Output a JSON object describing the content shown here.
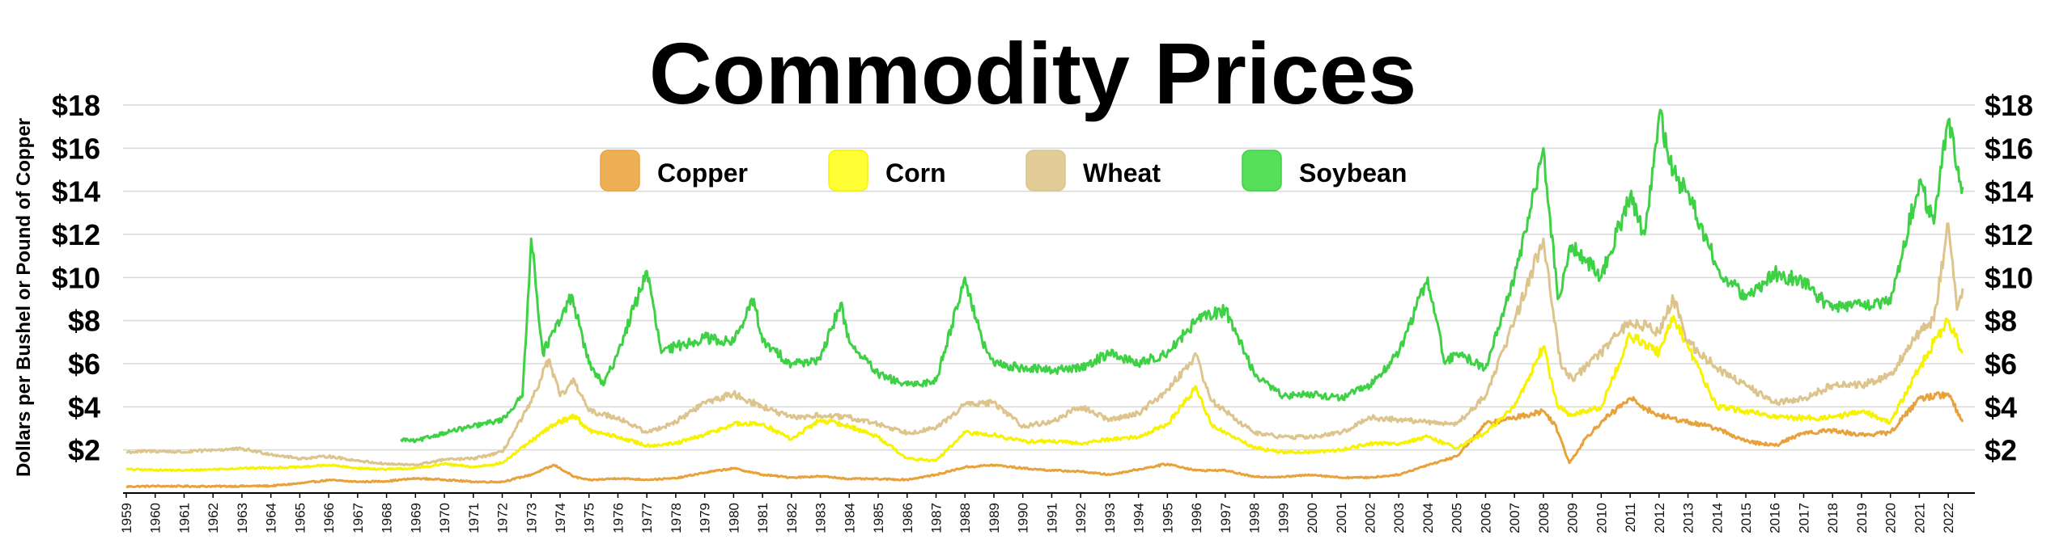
{
  "chart_data": {
    "type": "line",
    "title": "Commodity Prices",
    "ylabel": "Dollars per Bushel or Pound of Copper",
    "xlabel": "",
    "ylim": [
      0,
      18
    ],
    "xlim": [
      1959,
      2022.5
    ],
    "grid": true,
    "legend_position": "top-center",
    "y_ticks": [
      2,
      4,
      6,
      8,
      10,
      12,
      14,
      16,
      18
    ],
    "y_tick_labels": [
      "$2",
      "$4",
      "$6",
      "$8",
      "$10",
      "$12",
      "$14",
      "$16",
      "$18"
    ],
    "x_tick_labels": [
      "1959",
      "1960",
      "1961",
      "1962",
      "1963",
      "1964",
      "1965",
      "1966",
      "1967",
      "1968",
      "1969",
      "1970",
      "1971",
      "1972",
      "1973",
      "1974",
      "1975",
      "1976",
      "1977",
      "1978",
      "1979",
      "1980",
      "1981",
      "1982",
      "1983",
      "1984",
      "1985",
      "1986",
      "1987",
      "1988",
      "1989",
      "1990",
      "1991",
      "1992",
      "1993",
      "1994",
      "1995",
      "1996",
      "1997",
      "1998",
      "1999",
      "2000",
      "2001",
      "2002",
      "2003",
      "2004",
      "2005",
      "2006",
      "2007",
      "2008",
      "2009",
      "2010",
      "2011",
      "2012",
      "2013",
      "2014",
      "2015",
      "2016",
      "2017",
      "2018",
      "2019",
      "2020",
      "2021",
      "2022"
    ],
    "series": [
      {
        "name": "Copper",
        "color": "#e8a23c",
        "legend_color": "#eeb055",
        "points": [
          [
            1959,
            0.3
          ],
          [
            1960,
            0.32
          ],
          [
            1962,
            0.31
          ],
          [
            1964,
            0.33
          ],
          [
            1965,
            0.45
          ],
          [
            1966,
            0.6
          ],
          [
            1967,
            0.52
          ],
          [
            1968,
            0.55
          ],
          [
            1969,
            0.68
          ],
          [
            1970,
            0.62
          ],
          [
            1971,
            0.52
          ],
          [
            1972,
            0.52
          ],
          [
            1973,
            0.85
          ],
          [
            1973.8,
            1.3
          ],
          [
            1974.5,
            0.75
          ],
          [
            1975,
            0.6
          ],
          [
            1976,
            0.68
          ],
          [
            1977,
            0.62
          ],
          [
            1978,
            0.68
          ],
          [
            1979,
            0.95
          ],
          [
            1980,
            1.15
          ],
          [
            1981,
            0.85
          ],
          [
            1982,
            0.72
          ],
          [
            1983,
            0.78
          ],
          [
            1984,
            0.66
          ],
          [
            1985,
            0.65
          ],
          [
            1986,
            0.62
          ],
          [
            1987,
            0.85
          ],
          [
            1988,
            1.2
          ],
          [
            1989,
            1.3
          ],
          [
            1990,
            1.15
          ],
          [
            1991,
            1.05
          ],
          [
            1992,
            1.0
          ],
          [
            1993,
            0.85
          ],
          [
            1994,
            1.1
          ],
          [
            1995,
            1.35
          ],
          [
            1996,
            1.05
          ],
          [
            1997,
            1.05
          ],
          [
            1998,
            0.75
          ],
          [
            1999,
            0.75
          ],
          [
            2000,
            0.85
          ],
          [
            2001,
            0.72
          ],
          [
            2002,
            0.72
          ],
          [
            2003,
            0.85
          ],
          [
            2004,
            1.3
          ],
          [
            2005,
            1.7
          ],
          [
            2006,
            3.2
          ],
          [
            2007,
            3.5
          ],
          [
            2008,
            3.8
          ],
          [
            2008.4,
            3.2
          ],
          [
            2008.9,
            1.4
          ],
          [
            2009.5,
            2.6
          ],
          [
            2010,
            3.3
          ],
          [
            2011,
            4.4
          ],
          [
            2011.7,
            3.8
          ],
          [
            2012,
            3.6
          ],
          [
            2013,
            3.3
          ],
          [
            2014,
            3.0
          ],
          [
            2015,
            2.4
          ],
          [
            2016,
            2.2
          ],
          [
            2017,
            2.8
          ],
          [
            2018,
            2.9
          ],
          [
            2019,
            2.7
          ],
          [
            2020,
            2.8
          ],
          [
            2021,
            4.4
          ],
          [
            2022,
            4.6
          ],
          [
            2022.5,
            3.3
          ]
        ]
      },
      {
        "name": "Corn",
        "color": "#f6f200",
        "legend_color": "#ffff33",
        "points": [
          [
            1959,
            1.1
          ],
          [
            1961,
            1.05
          ],
          [
            1963,
            1.15
          ],
          [
            1965,
            1.2
          ],
          [
            1966,
            1.3
          ],
          [
            1967,
            1.15
          ],
          [
            1968,
            1.1
          ],
          [
            1969,
            1.15
          ],
          [
            1970,
            1.35
          ],
          [
            1971,
            1.2
          ],
          [
            1972,
            1.4
          ],
          [
            1973,
            2.4
          ],
          [
            1973.8,
            3.2
          ],
          [
            1974.5,
            3.6
          ],
          [
            1975,
            2.9
          ],
          [
            1976,
            2.6
          ],
          [
            1977,
            2.2
          ],
          [
            1978,
            2.3
          ],
          [
            1979,
            2.7
          ],
          [
            1980,
            3.2
          ],
          [
            1981,
            3.2
          ],
          [
            1982,
            2.5
          ],
          [
            1983,
            3.4
          ],
          [
            1984,
            3.1
          ],
          [
            1985,
            2.6
          ],
          [
            1986,
            1.6
          ],
          [
            1987,
            1.5
          ],
          [
            1988,
            2.8
          ],
          [
            1989,
            2.7
          ],
          [
            1990,
            2.4
          ],
          [
            1991,
            2.4
          ],
          [
            1992,
            2.3
          ],
          [
            1993,
            2.5
          ],
          [
            1994,
            2.6
          ],
          [
            1995,
            3.2
          ],
          [
            1996,
            4.9
          ],
          [
            1996.5,
            3.2
          ],
          [
            1997,
            2.8
          ],
          [
            1998,
            2.1
          ],
          [
            1999,
            1.9
          ],
          [
            2000,
            1.9
          ],
          [
            2001,
            2.0
          ],
          [
            2002,
            2.3
          ],
          [
            2003,
            2.3
          ],
          [
            2004,
            2.6
          ],
          [
            2005,
            2.1
          ],
          [
            2006,
            2.8
          ],
          [
            2007,
            4.0
          ],
          [
            2008,
            6.8
          ],
          [
            2008.5,
            4.0
          ],
          [
            2009,
            3.6
          ],
          [
            2010,
            4.0
          ],
          [
            2011,
            7.3
          ],
          [
            2012,
            6.5
          ],
          [
            2012.5,
            8.2
          ],
          [
            2013,
            6.8
          ],
          [
            2014,
            4.0
          ],
          [
            2015,
            3.8
          ],
          [
            2016,
            3.5
          ],
          [
            2017,
            3.5
          ],
          [
            2018,
            3.5
          ],
          [
            2019,
            3.8
          ],
          [
            2020,
            3.3
          ],
          [
            2021,
            5.8
          ],
          [
            2021.5,
            7.0
          ],
          [
            2022,
            8.0
          ],
          [
            2022.5,
            6.5
          ]
        ]
      },
      {
        "name": "Wheat",
        "color": "#dcc48c",
        "legend_color": "#e2cd98",
        "points": [
          [
            1959,
            1.9
          ],
          [
            1960,
            1.95
          ],
          [
            1961,
            1.9
          ],
          [
            1962,
            2.0
          ],
          [
            1963,
            2.05
          ],
          [
            1964,
            1.8
          ],
          [
            1965,
            1.6
          ],
          [
            1966,
            1.7
          ],
          [
            1967,
            1.5
          ],
          [
            1968,
            1.35
          ],
          [
            1969,
            1.3
          ],
          [
            1970,
            1.55
          ],
          [
            1971,
            1.6
          ],
          [
            1972,
            1.9
          ],
          [
            1973,
            4.2
          ],
          [
            1973.6,
            6.2
          ],
          [
            1974,
            4.5
          ],
          [
            1974.5,
            5.2
          ],
          [
            1975,
            3.8
          ],
          [
            1976,
            3.5
          ],
          [
            1977,
            2.8
          ],
          [
            1978,
            3.3
          ],
          [
            1979,
            4.2
          ],
          [
            1980,
            4.6
          ],
          [
            1981,
            4.0
          ],
          [
            1982,
            3.5
          ],
          [
            1983,
            3.6
          ],
          [
            1984,
            3.5
          ],
          [
            1985,
            3.2
          ],
          [
            1986,
            2.8
          ],
          [
            1987,
            3.0
          ],
          [
            1988,
            4.1
          ],
          [
            1989,
            4.2
          ],
          [
            1990,
            3.1
          ],
          [
            1991,
            3.3
          ],
          [
            1992,
            4.0
          ],
          [
            1993,
            3.4
          ],
          [
            1994,
            3.7
          ],
          [
            1995,
            4.8
          ],
          [
            1996,
            6.4
          ],
          [
            1996.5,
            4.3
          ],
          [
            1997,
            3.8
          ],
          [
            1998,
            2.8
          ],
          [
            1999,
            2.6
          ],
          [
            2000,
            2.6
          ],
          [
            2001,
            2.8
          ],
          [
            2002,
            3.5
          ],
          [
            2003,
            3.4
          ],
          [
            2004,
            3.3
          ],
          [
            2005,
            3.2
          ],
          [
            2006,
            4.5
          ],
          [
            2007,
            8.0
          ],
          [
            2008,
            11.8
          ],
          [
            2008.6,
            6.0
          ],
          [
            2009,
            5.3
          ],
          [
            2010,
            6.5
          ],
          [
            2011,
            8.0
          ],
          [
            2012,
            7.5
          ],
          [
            2012.5,
            9.0
          ],
          [
            2013,
            7.0
          ],
          [
            2014,
            5.8
          ],
          [
            2015,
            5.0
          ],
          [
            2016,
            4.2
          ],
          [
            2017,
            4.4
          ],
          [
            2018,
            5.0
          ],
          [
            2019,
            5.0
          ],
          [
            2020,
            5.5
          ],
          [
            2021,
            7.5
          ],
          [
            2021.5,
            8.0
          ],
          [
            2022,
            12.5
          ],
          [
            2022.3,
            8.5
          ],
          [
            2022.5,
            9.5
          ]
        ]
      },
      {
        "name": "Soybean",
        "color": "#3ed145",
        "legend_color": "#57df5c",
        "points": [
          [
            1968.5,
            2.5
          ],
          [
            1969,
            2.4
          ],
          [
            1970,
            2.8
          ],
          [
            1971,
            3.1
          ],
          [
            1972,
            3.4
          ],
          [
            1972.7,
            4.5
          ],
          [
            1973,
            11.8
          ],
          [
            1973.4,
            6.5
          ],
          [
            1974,
            8.0
          ],
          [
            1974.4,
            9.2
          ],
          [
            1975,
            6.0
          ],
          [
            1975.5,
            5.0
          ],
          [
            1976,
            6.5
          ],
          [
            1977,
            10.3
          ],
          [
            1977.5,
            6.5
          ],
          [
            1978,
            6.8
          ],
          [
            1979,
            7.2
          ],
          [
            1980,
            7.0
          ],
          [
            1980.7,
            9.0
          ],
          [
            1981,
            7.0
          ],
          [
            1982,
            6.0
          ],
          [
            1983,
            6.2
          ],
          [
            1983.7,
            8.8
          ],
          [
            1984,
            7.0
          ],
          [
            1985,
            5.5
          ],
          [
            1986,
            5.0
          ],
          [
            1987,
            5.2
          ],
          [
            1988,
            10.0
          ],
          [
            1988.6,
            7.0
          ],
          [
            1989,
            6.0
          ],
          [
            1990,
            5.8
          ],
          [
            1991,
            5.7
          ],
          [
            1992,
            5.8
          ],
          [
            1993,
            6.5
          ],
          [
            1994,
            6.0
          ],
          [
            1995,
            6.5
          ],
          [
            1996,
            8.0
          ],
          [
            1997,
            8.5
          ],
          [
            1997.6,
            6.8
          ],
          [
            1998,
            5.5
          ],
          [
            1999,
            4.5
          ],
          [
            2000,
            4.6
          ],
          [
            2001,
            4.4
          ],
          [
            2002,
            5.0
          ],
          [
            2003,
            6.5
          ],
          [
            2004,
            10.0
          ],
          [
            2004.6,
            6.0
          ],
          [
            2005,
            6.5
          ],
          [
            2006,
            5.8
          ],
          [
            2007,
            10.0
          ],
          [
            2007.7,
            14.0
          ],
          [
            2008,
            16.0
          ],
          [
            2008.5,
            9.0
          ],
          [
            2009,
            11.5
          ],
          [
            2010,
            10.0
          ],
          [
            2011,
            13.8
          ],
          [
            2011.5,
            12.0
          ],
          [
            2012,
            17.5
          ],
          [
            2012.6,
            14.5
          ],
          [
            2013,
            14.0
          ],
          [
            2014,
            10.5
          ],
          [
            2015,
            9.0
          ],
          [
            2016,
            10.2
          ],
          [
            2017,
            9.8
          ],
          [
            2018,
            8.5
          ],
          [
            2019,
            8.8
          ],
          [
            2020,
            8.8
          ],
          [
            2021,
            14.5
          ],
          [
            2021.5,
            12.5
          ],
          [
            2022,
            17.3
          ],
          [
            2022.3,
            15.0
          ],
          [
            2022.5,
            14.2
          ]
        ]
      }
    ]
  }
}
